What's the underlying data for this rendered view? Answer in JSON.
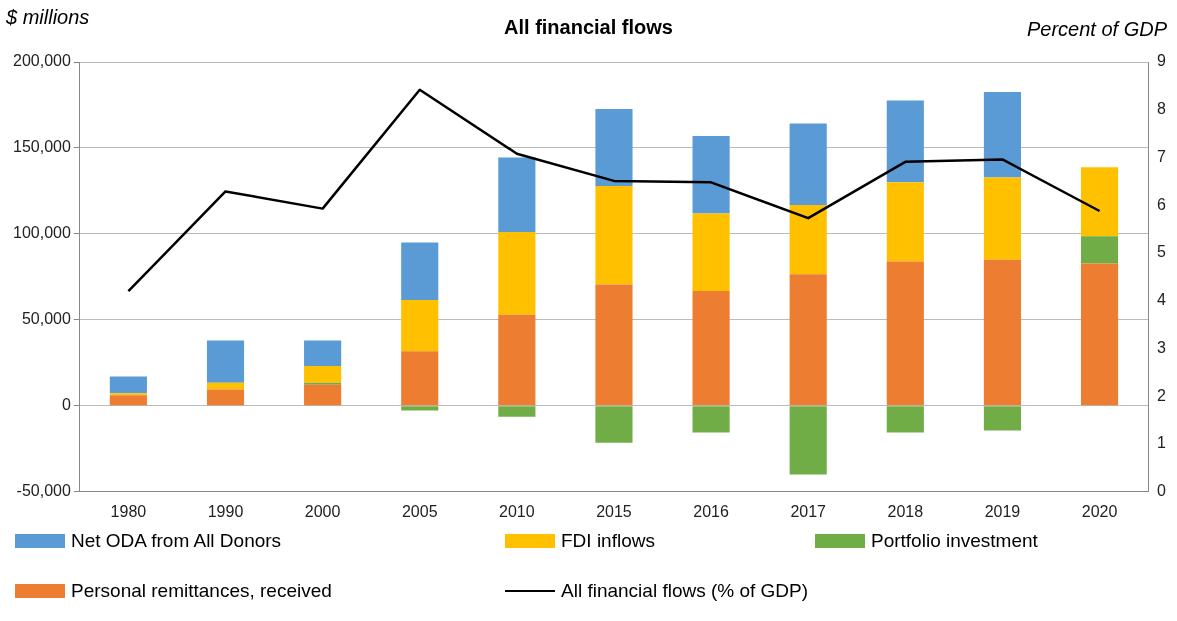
{
  "chart_data": {
    "type": "bar",
    "stacked": true,
    "title": "All financial flows",
    "ylabel": "$ millions",
    "y2label": "Percent of GDP",
    "categories": [
      "1980",
      "1990",
      "2000",
      "2005",
      "2010",
      "2015",
      "2016",
      "2017",
      "2018",
      "2019",
      "2020"
    ],
    "series": [
      {
        "name": "Personal remittances, received",
        "color": "#ed7d31",
        "values": [
          6100,
          9500,
          12300,
          31800,
          53000,
          70600,
          66800,
          76600,
          83900,
          85000,
          82800
        ]
      },
      {
        "name": "Portfolio investment",
        "color": "#70ad47",
        "values": [
          null,
          null,
          1100,
          -2700,
          -6400,
          -21500,
          -15500,
          -40000,
          -15500,
          -14400,
          15800
        ]
      },
      {
        "name": "FDI inflows",
        "color": "#ffc000",
        "values": [
          1200,
          3900,
          9800,
          29800,
          48100,
          57300,
          45100,
          40200,
          46200,
          47800,
          40200
        ]
      },
      {
        "name": "Net ODA from All Donors",
        "color": "#5b9bd5",
        "values": [
          9700,
          24600,
          14800,
          33400,
          43400,
          44800,
          45100,
          47500,
          47500,
          49700,
          null
        ]
      },
      {
        "name": "All financial flows (% of GDP)",
        "type": "line",
        "axis": "y2",
        "color": "#000000",
        "values": [
          4.2,
          6.29,
          5.93,
          8.42,
          7.08,
          6.51,
          6.48,
          5.73,
          6.91,
          6.96,
          5.88
        ]
      }
    ],
    "ylim": [
      -50000,
      200000
    ],
    "yticks": [
      {
        "value": -50000,
        "label": "-50,000"
      },
      0,
      {
        "value": 50000,
        "label": "50,000"
      },
      {
        "value": 100000,
        "label": "100,000"
      },
      {
        "value": 150000,
        "label": "150,000"
      },
      {
        "value": 200000,
        "label": "200,000"
      }
    ],
    "y2lim": [
      0,
      9
    ],
    "y2ticks": [
      0,
      1,
      2,
      3,
      4,
      5,
      6,
      7,
      8,
      9
    ],
    "grid": "y",
    "legend": "bottom",
    "marker": "none"
  }
}
